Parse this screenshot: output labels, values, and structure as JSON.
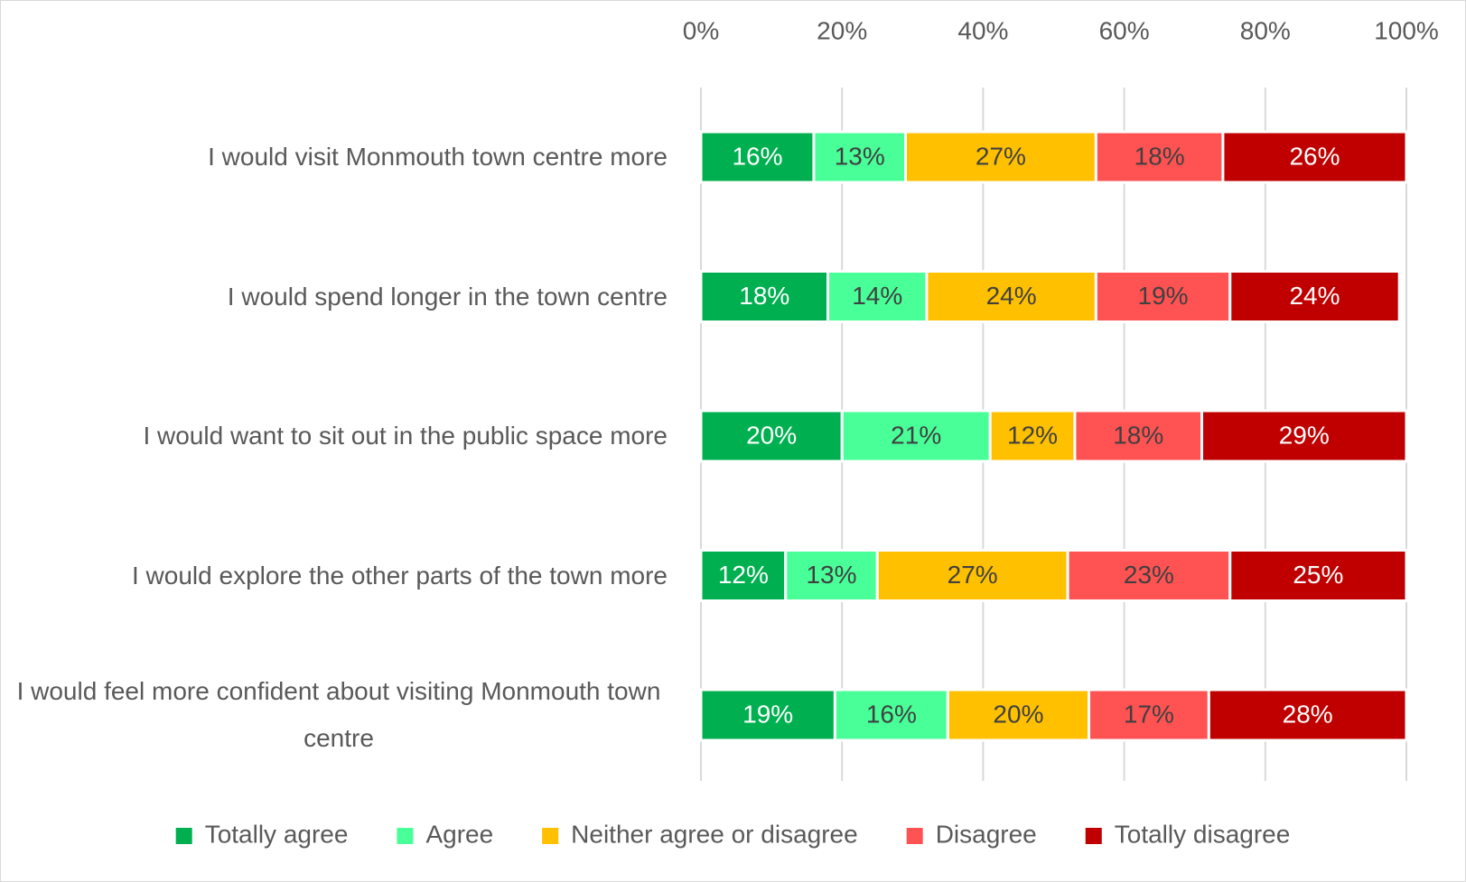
{
  "chart_data": {
    "type": "stacked_bar_horizontal",
    "categories": [
      "I would visit Monmouth town centre more",
      "I would spend longer in the town centre",
      "I would want to sit out in the public space more",
      "I would explore the other parts of the town more",
      "I would feel more confident about visiting Monmouth town centre"
    ],
    "series": [
      {
        "name": "Totally agree",
        "color": "#00b050",
        "values": [
          16,
          18,
          20,
          12,
          19
        ],
        "value_labels": [
          "16%",
          "18%",
          "20%",
          "12%",
          "19%"
        ]
      },
      {
        "name": "Agree",
        "color": "#48ff98",
        "values": [
          13,
          14,
          21,
          13,
          16
        ],
        "value_labels": [
          "13%",
          "14%",
          "21%",
          "13%",
          "16%"
        ]
      },
      {
        "name": "Neither agree or disagree",
        "color": "#ffc000",
        "values": [
          27,
          24,
          12,
          27,
          20
        ],
        "value_labels": [
          "27%",
          "24%",
          "12%",
          "27%",
          "20%"
        ]
      },
      {
        "name": "Disagree",
        "color": "#ff5252",
        "values": [
          18,
          19,
          18,
          23,
          17
        ],
        "value_labels": [
          "18%",
          "19%",
          "18%",
          "23%",
          "17%"
        ]
      },
      {
        "name": "Totally disagree",
        "color": "#c00000",
        "values": [
          26,
          24,
          29,
          25,
          28
        ],
        "value_labels": [
          "26%",
          "24%",
          "29%",
          "25%",
          "28%"
        ]
      }
    ],
    "xlim": [
      0,
      100
    ],
    "xticks": [
      {
        "value": 0,
        "label": "0%"
      },
      {
        "value": 20,
        "label": "20%"
      },
      {
        "value": 40,
        "label": "40%"
      },
      {
        "value": 60,
        "label": "60%"
      },
      {
        "value": 80,
        "label": "80%"
      },
      {
        "value": 100,
        "label": "100%"
      }
    ],
    "grid": true,
    "legend": "bottom"
  }
}
